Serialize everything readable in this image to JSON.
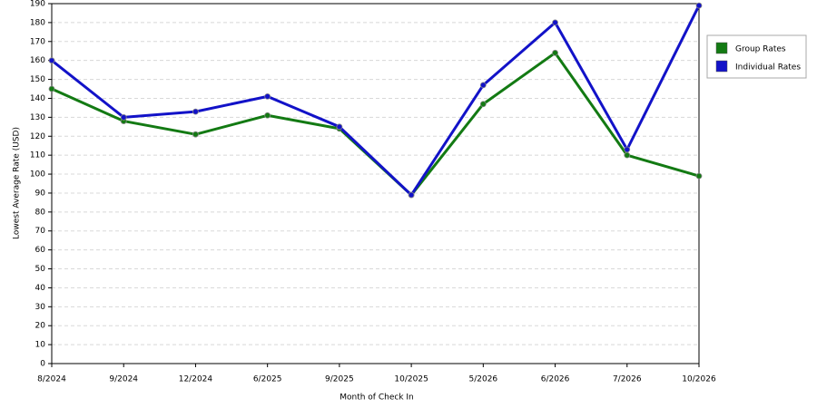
{
  "chart_data": {
    "type": "line",
    "x_label": "Month of Check In",
    "y_label": "Lowest Average Rate (USD)",
    "categories": [
      "8/2024",
      "9/2024",
      "12/2024",
      "6/2025",
      "9/2025",
      "10/2025",
      "5/2026",
      "6/2026",
      "7/2026",
      "10/2026"
    ],
    "series": [
      {
        "name": "Group Rates",
        "color": "#137a13",
        "values": [
          145,
          128,
          121,
          131,
          124,
          89,
          137,
          164,
          110,
          99
        ]
      },
      {
        "name": "Individual Rates",
        "color": "#1212c8",
        "values": [
          160,
          130,
          133,
          141,
          125,
          89,
          147,
          180,
          113,
          189
        ]
      }
    ],
    "ylim": [
      0,
      190
    ],
    "yticks": [
      0,
      10,
      20,
      30,
      40,
      50,
      60,
      70,
      80,
      90,
      100,
      110,
      120,
      130,
      140,
      150,
      160,
      170,
      180,
      190
    ],
    "grid": true,
    "legend": "right"
  }
}
